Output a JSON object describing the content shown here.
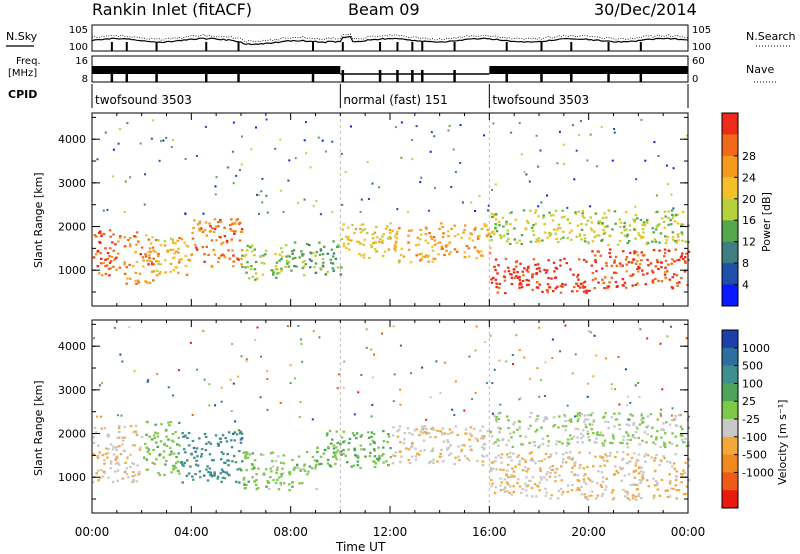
{
  "header": {
    "station": "Rankin Inlet (fitACF)",
    "beam": "Beam 09",
    "date": "30/Dec/2014"
  },
  "summary": {
    "nsky_label": "N.Sky",
    "nsearch_label": "N.Search",
    "freq_label_1": "Freq.",
    "freq_label_2": "[MHz]",
    "nave_label": "Nave",
    "cpid_label": "CPID",
    "noise_ticks": [
      "10^5",
      "10^0"
    ],
    "freq_ticks": [
      "16",
      "8"
    ],
    "nave_ticks": [
      "60",
      "0"
    ],
    "cpid_segments": [
      {
        "label": "twofsound 3503",
        "start_hour": 0,
        "end_hour": 10
      },
      {
        "label": "normal (fast) 151",
        "start_hour": 10,
        "end_hour": 16
      },
      {
        "label": "twofsound 3503",
        "start_hour": 16,
        "end_hour": 24
      }
    ]
  },
  "axes": {
    "xlabel": "Time UT",
    "ylabel": "Slant Range [km]",
    "xticks": [
      "00:00",
      "04:00",
      "08:00",
      "12:00",
      "16:00",
      "20:00",
      "00:00"
    ],
    "yticks": [
      "1000",
      "2000",
      "3000",
      "4000"
    ]
  },
  "colorbars": {
    "power": {
      "label": "Power [dB]",
      "ticks": [
        "4",
        "8",
        "12",
        "16",
        "20",
        "24",
        "28"
      ],
      "colors": [
        "#0a1aff",
        "#1f4fa8",
        "#3f7f7f",
        "#55a84a",
        "#b6d23a",
        "#f2c12a",
        "#f59a1e",
        "#f06a1a",
        "#ee2a18"
      ]
    },
    "velocity": {
      "label": "Velocity [m s⁻¹]",
      "ticks": [
        "1000",
        "500",
        "100",
        "25",
        "-25",
        "-100",
        "-500",
        "-1000"
      ],
      "colors": [
        "#1f3fa8",
        "#2f6fa0",
        "#3f8f8f",
        "#4fa45a",
        "#7ec84a",
        "#c8c8c8",
        "#f5a83a",
        "#f08a1f",
        "#ee5a18",
        "#e81a10"
      ]
    }
  },
  "chart_data": [
    {
      "type": "heatmap",
      "title": "Power [dB]",
      "xlabel": "Time UT",
      "ylabel": "Slant Range [km]",
      "x_range_hours": [
        0,
        24
      ],
      "ylim": [
        180,
        4600
      ],
      "clim": [
        0,
        30
      ],
      "regions": [
        {
          "x0": 0.0,
          "x1": 1.2,
          "y0": 900,
          "y1": 2000,
          "value": 26
        },
        {
          "x0": 1.2,
          "x1": 2.5,
          "y0": 700,
          "y1": 1900,
          "value": 23
        },
        {
          "x0": 2.5,
          "x1": 4.0,
          "y0": 900,
          "y1": 1800,
          "value": 20
        },
        {
          "x0": 4.0,
          "x1": 6.0,
          "y0": 1100,
          "y1": 2200,
          "value": 24
        },
        {
          "x0": 6.0,
          "x1": 8.0,
          "y0": 800,
          "y1": 1600,
          "value": 14
        },
        {
          "x0": 8.0,
          "x1": 10.0,
          "y0": 900,
          "y1": 1700,
          "value": 12
        },
        {
          "x0": 10.0,
          "x1": 12.0,
          "y0": 1300,
          "y1": 2100,
          "value": 18
        },
        {
          "x0": 12.0,
          "x1": 14.0,
          "y0": 1200,
          "y1": 2000,
          "value": 20
        },
        {
          "x0": 14.0,
          "x1": 16.0,
          "y0": 1300,
          "y1": 2100,
          "value": 21
        },
        {
          "x0": 16.0,
          "x1": 20.0,
          "y0": 500,
          "y1": 1300,
          "value": 29
        },
        {
          "x0": 20.0,
          "x1": 24.0,
          "y0": 600,
          "y1": 1500,
          "value": 27
        },
        {
          "x0": 16.0,
          "x1": 24.0,
          "y0": 1600,
          "y1": 2400,
          "value": 15
        }
      ]
    },
    {
      "type": "heatmap",
      "title": "Velocity [m s⁻¹]",
      "xlabel": "Time UT",
      "ylabel": "Slant Range [km]",
      "x_range_hours": [
        0,
        24
      ],
      "ylim": [
        180,
        4600
      ],
      "clim": [
        -1000,
        1000
      ],
      "regions": [
        {
          "x0": 0.0,
          "x1": 2.0,
          "y0": 900,
          "y1": 2200,
          "value": -150
        },
        {
          "x0": 2.0,
          "x1": 3.5,
          "y0": 1000,
          "y1": 2300,
          "value": 150
        },
        {
          "x0": 3.5,
          "x1": 6.0,
          "y0": 900,
          "y1": 2100,
          "value": 500
        },
        {
          "x0": 6.0,
          "x1": 9.0,
          "y0": 700,
          "y1": 1600,
          "value": 100
        },
        {
          "x0": 9.0,
          "x1": 12.0,
          "y0": 1200,
          "y1": 2100,
          "value": 200
        },
        {
          "x0": 12.0,
          "x1": 16.0,
          "y0": 1300,
          "y1": 2200,
          "value": -150
        },
        {
          "x0": 16.0,
          "x1": 24.0,
          "y0": 500,
          "y1": 1600,
          "value": -200
        },
        {
          "x0": 16.0,
          "x1": 24.0,
          "y0": 1700,
          "y1": 2500,
          "value": 0
        }
      ]
    }
  ]
}
